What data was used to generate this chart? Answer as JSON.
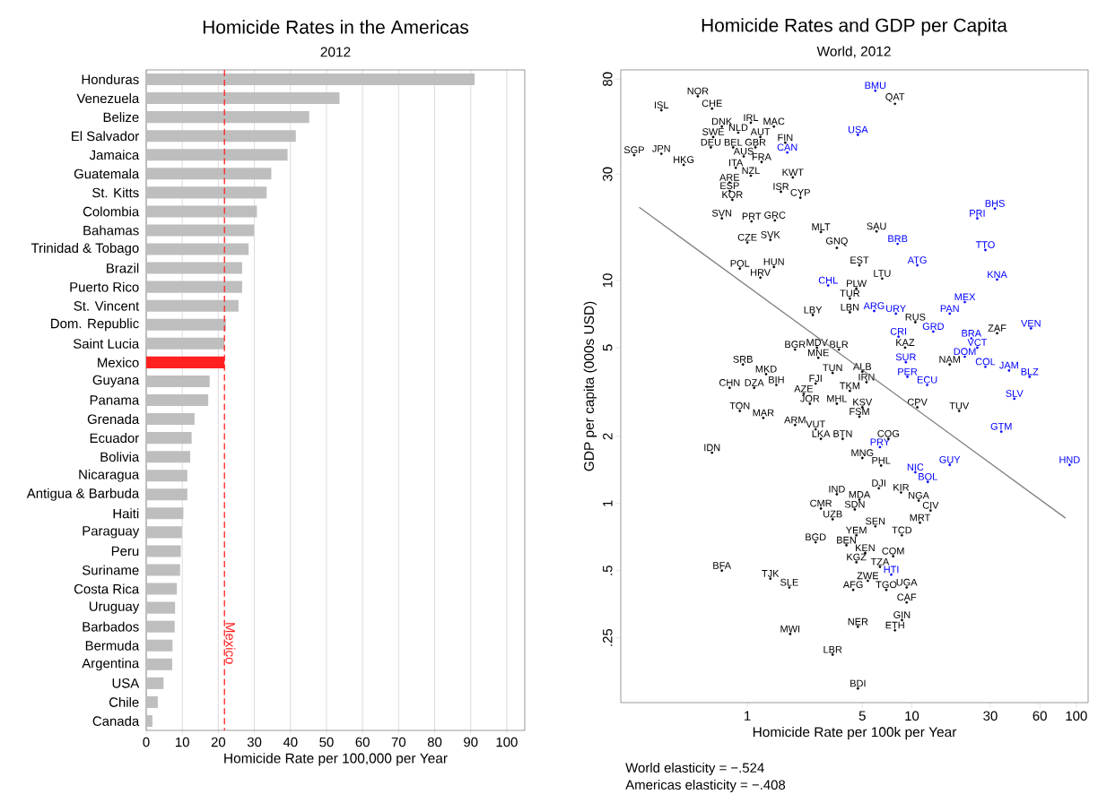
{
  "chart_data": [
    {
      "type": "bar",
      "orientation": "horizontal",
      "title": "Homicide Rates in the Americas",
      "subtitle": "2012",
      "xlabel": "Homicide Rate per 100,000 per Year",
      "categories": [
        "Honduras",
        "Venezuela",
        "Belize",
        "El Salvador",
        "Jamaica",
        "Guatemala",
        "St. Kitts",
        "Colombia",
        "Bahamas",
        "Trinidad & Tobago",
        "Brazil",
        "Puerto Rico",
        "St. Vincent",
        "Dom. Republic",
        "Saint Lucia",
        "Mexico",
        "Guyana",
        "Panama",
        "Grenada",
        "Ecuador",
        "Bolivia",
        "Nicaragua",
        "Antigua & Barbuda",
        "Haiti",
        "Paraguay",
        "Peru",
        "Suriname",
        "Costa Rica",
        "Uruguay",
        "Barbados",
        "Bermuda",
        "Argentina",
        "USA",
        "Chile",
        "Canada"
      ],
      "values": [
        91.1,
        53.6,
        45.2,
        41.5,
        39.2,
        34.7,
        33.4,
        30.7,
        29.9,
        28.4,
        26.6,
        26.6,
        25.6,
        22.1,
        21.7,
        21.7,
        17.6,
        17.2,
        13.4,
        12.6,
        12.2,
        11.4,
        11.4,
        10.3,
        9.9,
        9.6,
        9.4,
        8.5,
        8.0,
        7.9,
        7.3,
        7.2,
        4.8,
        3.2,
        1.7
      ],
      "colors": [
        "#bebebe",
        "#bebebe",
        "#bebebe",
        "#bebebe",
        "#bebebe",
        "#bebebe",
        "#bebebe",
        "#bebebe",
        "#bebebe",
        "#bebebe",
        "#bebebe",
        "#bebebe",
        "#bebebe",
        "#bebebe",
        "#bebebe",
        "#ff2020",
        "#bebebe",
        "#bebebe",
        "#bebebe",
        "#bebebe",
        "#bebebe",
        "#bebebe",
        "#bebebe",
        "#bebebe",
        "#bebebe",
        "#bebebe",
        "#bebebe",
        "#bebebe",
        "#bebebe",
        "#bebebe",
        "#bebebe",
        "#bebebe",
        "#bebebe",
        "#bebebe",
        "#bebebe"
      ],
      "xlim": [
        0,
        105
      ],
      "xticks": [
        0,
        10,
        20,
        30,
        40,
        50,
        60,
        70,
        80,
        90,
        100
      ],
      "grid": "x",
      "ref_lines": [
        {
          "axis": "x",
          "value": 21.7,
          "label": "Mexico",
          "color": "#ff2020",
          "line_style": "dashed"
        }
      ]
    },
    {
      "type": "scatter",
      "title": "Homicide Rates and GDP per Capita",
      "subtitle": "World, 2012",
      "xlabel": "Homicide Rate per 100k per Year",
      "ylabel": "GDP per capita (000s USD)",
      "log": "xy",
      "xlim": [
        0.17,
        118
      ],
      "ylim": [
        0.128,
        88
      ],
      "xticks": [
        1,
        5,
        10,
        30,
        60,
        100
      ],
      "yticks": [
        {
          "value": 0.25,
          "label": ".25"
        },
        {
          "value": 0.5,
          "label": ".5"
        },
        1,
        2,
        5,
        10,
        30,
        80
      ],
      "series": [
        {
          "color": "#000000",
          "marker": "circle",
          "x": [
            0.5,
            0.3,
            0.61,
            0.7,
            0.62,
            0.88,
            1.05,
            1.45,
            1.2,
            0.6,
            1.12,
            0.82,
            1.7,
            0.95,
            1.22,
            0.205,
            0.3,
            0.41,
            0.85,
            1.05,
            0.78,
            0.78,
            0.81,
            1.89,
            1.6,
            2.1,
            0.7,
            1.06,
            1.47,
            2.8,
            6.1,
            1.0,
            1.38,
            3.5,
            4.8,
            6.6,
            0.9,
            1.45,
            1.2,
            4.6,
            4.2,
            2.5,
            4.2,
            7.9,
            10.5,
            9.1,
            17,
            33,
            10.8,
            19.4,
            7.2,
            5.0,
            6.5,
            6.3,
            8.6,
            4.8,
            11,
            4.5,
            13,
            11.2,
            6.0,
            8.7,
            4.6,
            4.0,
            5.2,
            7.7,
            4.6,
            6.4,
            5.4,
            9.3,
            4.4,
            7.0,
            9.3,
            8.7,
            7.9,
            4.7,
            4.7,
            3.3,
            1.82,
            1.8,
            1.38,
            0.7,
            2.6,
            3.3,
            2.8,
            3.5,
            0.61,
            1.95,
            2.6,
            2.8,
            3.8,
            0.9,
            1.25,
            0.78,
            1.1,
            1.5,
            0.94,
            1.3,
            2.2,
            2.4,
            3.5,
            3.3,
            2.6,
            4.2,
            5.0,
            4.8,
            5.0,
            5.3,
            1.95,
            2.65,
            3.6,
            2.7
          ],
          "values": [
            67,
            58,
            59,
            49,
            44,
            46,
            51,
            49,
            44,
            39.5,
            39.5,
            39.5,
            41.5,
            36,
            34,
            36.5,
            37,
            33,
            32,
            29.5,
            27.5,
            25.2,
            23,
            29,
            25,
            23.5,
            19,
            18.4,
            18.6,
            16.5,
            16.6,
            14.8,
            15.2,
            14,
            11.7,
            10.2,
            11.3,
            11.5,
            10.3,
            9.2,
            8.3,
            7.0,
            7.2,
            62,
            6.5,
            5.0,
            4.2,
            5.8,
            2.7,
            2.6,
            1.95,
            1.6,
            1.48,
            1.17,
            1.12,
            1.04,
            1.03,
            0.94,
            0.93,
            0.82,
            0.79,
            0.72,
            0.72,
            0.65,
            0.6,
            0.58,
            0.545,
            0.52,
            0.45,
            0.42,
            0.41,
            0.41,
            0.36,
            0.3,
            0.27,
            0.28,
            0.148,
            0.21,
            0.26,
            0.42,
            0.46,
            0.5,
            0.67,
            0.85,
            0.95,
            1.1,
            1.69,
            2.25,
            2.15,
            1.95,
            1.95,
            2.6,
            2.42,
            3.3,
            3.3,
            3.4,
            4.2,
            3.8,
            3.1,
            2.8,
            2.8,
            3.85,
            3.45,
            3.2,
            2.7,
            2.45,
            3.9,
            3.5,
            4.9,
            5.0,
            4.9,
            4.5
          ],
          "value_labels": [
            "NOR",
            "ISL",
            "CHE",
            "DNK",
            "SWE",
            "NLD",
            "IRL",
            "MAC",
            "AUT",
            "DEU",
            "GBR",
            "BEL",
            "FIN",
            "AUS",
            "FRA",
            "SGP",
            "JPN",
            "HKG",
            "ITA",
            "NZL",
            "ARE",
            "ESP",
            "KOR",
            "KWT",
            "ISR",
            "CYP",
            "SVN",
            "PRT",
            "GRC",
            "MLT",
            "SAU",
            "CZE",
            "SVK",
            "GNQ",
            "EST",
            "LTU",
            "POL",
            "HUN",
            "HRV",
            "PLW",
            "TUR",
            "LBY",
            "LBN",
            "QAT",
            "RUS",
            "KAZ",
            "NAM",
            "ZAF",
            "CPV",
            "TUV",
            "COG",
            "MNG",
            "PHL",
            "DJI",
            "KIR",
            "MDA",
            "NGA",
            "SDN",
            "CIV",
            "MRT",
            "SEN",
            "TCD",
            "YEM",
            "BEN",
            "KEN",
            "COM",
            "KGZ",
            "TZA",
            "ZWE",
            "UGA",
            "AFG",
            "TGO",
            "CAF",
            "GIN",
            "ETH",
            "NER",
            "BDI",
            "LBR",
            "MWI",
            "SLE",
            "TJK",
            "BFA",
            "BGD",
            "UZB",
            "CMR",
            "IND",
            "IDN",
            "ARM",
            "VUT",
            "LKA",
            "BTN",
            "TON",
            "MAR",
            "CHN",
            "DZA",
            "BIH",
            "SRB",
            "MKD",
            "AZE",
            "JOR",
            "MHL",
            "TUN",
            "FJI",
            "TKM",
            "KSV",
            "FSM",
            "ALB",
            "IRN",
            "BGR",
            "MDV",
            "BLR",
            "MNE"
          ]
        },
        {
          "color": "#0000ff",
          "marker": "circle",
          "x": [
            6.0,
            4.7,
            1.75,
            32,
            25,
            28,
            33,
            8.2,
            10.8,
            3.1,
            5.9,
            8.0,
            21,
            17,
            53,
            23,
            25,
            13.5,
            8.3,
            9.2,
            9.4,
            12.4,
            21,
            28,
            39,
            52,
            42,
            35,
            91,
            6.4,
            17,
            10.5,
            12.5,
            7.5
          ],
          "values": [
            71,
            45,
            37.5,
            21,
            19,
            13.7,
            10.1,
            14.6,
            11.7,
            9.5,
            7.3,
            7.1,
            8.0,
            7.1,
            6.1,
            5.5,
            5.0,
            5.9,
            5.6,
            4.3,
            3.7,
            3.4,
            4.55,
            4.1,
            3.95,
            3.7,
            2.95,
            2.1,
            1.49,
            1.79,
            1.49,
            1.38,
            1.25,
            0.48
          ],
          "value_labels": [
            "BMU",
            "USA",
            "CAN",
            "BHS",
            "PRI",
            "TTO",
            "KNA",
            "BRB",
            "ATG",
            "CHL",
            "ARG",
            "URY",
            "MEX",
            "PAN",
            "VEN",
            "BRA",
            "VCT",
            "GRD",
            "CRI",
            "SUR",
            "PER",
            "ECU",
            "DOM",
            "COL",
            "JAM",
            "BLZ",
            "SLV",
            "GTM",
            "HND",
            "PRY",
            "GUY",
            "NIC",
            "BOL",
            "HTI"
          ]
        },
        {
          "type": "line",
          "color": "#808080",
          "x": [
            0.22,
            86
          ],
          "values": [
            21.3,
            0.86
          ]
        }
      ],
      "annotations": [
        "World elasticity = −.524",
        "Americas elasticity = −.408"
      ]
    }
  ]
}
